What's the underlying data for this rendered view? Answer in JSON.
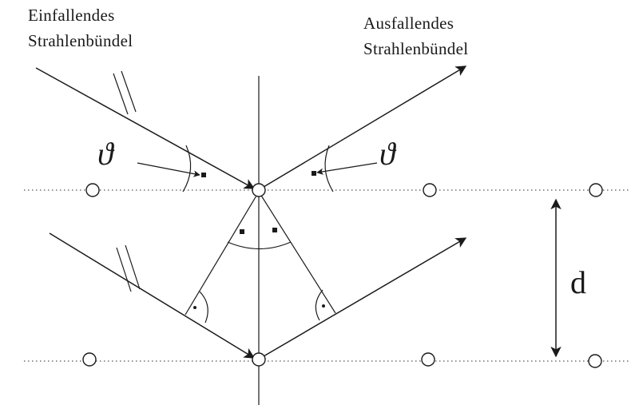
{
  "labels": {
    "incident_line1": "Einfallendes",
    "incident_line2": "Strahlenbündel",
    "outgoing_line1": "Ausfallendes",
    "outgoing_line2": "Strahlenbündel",
    "angle_left": "ϑ",
    "angle_right": "ϑ",
    "spacing": "d"
  },
  "colors": {
    "ink": "#1a1a1a",
    "background": "#ffffff"
  }
}
